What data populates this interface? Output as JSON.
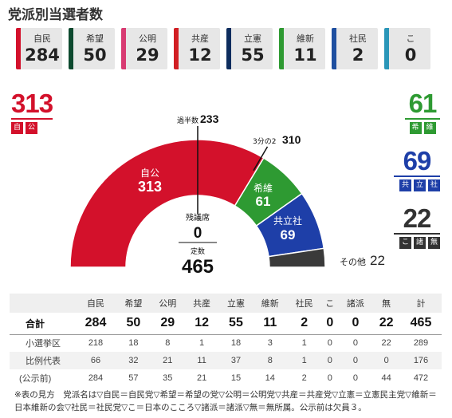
{
  "title": "党派別当選者数",
  "cards": [
    {
      "name": "自民",
      "count": "284",
      "color": "#d3112b"
    },
    {
      "name": "希望",
      "count": "50",
      "color": "#0d4a2f"
    },
    {
      "name": "公明",
      "count": "29",
      "color": "#d83b72"
    },
    {
      "name": "共産",
      "count": "12",
      "color": "#d11e23"
    },
    {
      "name": "立憲",
      "count": "55",
      "color": "#0d2d5e"
    },
    {
      "name": "維新",
      "count": "11",
      "color": "#2e9a32"
    },
    {
      "name": "社民",
      "count": "2",
      "color": "#1e4fa0"
    },
    {
      "name": "こ",
      "count": "0",
      "color": "#2a96b8"
    }
  ],
  "blocs": {
    "ruling": {
      "total": "313",
      "tags": [
        "自",
        "公"
      ],
      "color": "#d3112b"
    },
    "kibo_ishin": {
      "total": "61",
      "tags": [
        "希",
        "維"
      ],
      "color": "#2e9a32"
    },
    "left": {
      "total": "69",
      "tags": [
        "共",
        "立",
        "社"
      ],
      "color": "#1e3fa8"
    },
    "other": {
      "total": "22",
      "tags": [
        "こ",
        "諸",
        "無"
      ],
      "color": "#333333"
    }
  },
  "hemi": {
    "majority_label": "過半数",
    "majority_value": "233",
    "twothirds_label": "3分の2",
    "twothirds_value": "310",
    "ruling_label": "自公",
    "ruling_value": "313",
    "kibo_label": "希維",
    "kibo_value": "61",
    "left_label": "共立社",
    "left_value": "69",
    "remaining_label": "残議席",
    "remaining_value": "0",
    "fixed_label": "定数",
    "fixed_value": "465",
    "other_label": "その他",
    "other_value": "22"
  },
  "chart_data": {
    "type": "pie",
    "title": "",
    "categories": [
      "自公",
      "希維",
      "共立社",
      "その他"
    ],
    "values": [
      313,
      61,
      69,
      22
    ],
    "colors": [
      "#d3112b",
      "#2e9a32",
      "#1e3fa8",
      "#3a3a3a"
    ],
    "total": 465,
    "markers": [
      {
        "label": "過半数",
        "value": 233
      },
      {
        "label": "3分の2",
        "value": 310
      }
    ]
  },
  "table": {
    "headers": [
      "",
      "自民",
      "希望",
      "公明",
      "共産",
      "立憲",
      "維新",
      "社民",
      "こ",
      "諸派",
      "無",
      "計"
    ],
    "rows": [
      {
        "label": "合計",
        "cells": [
          "284",
          "50",
          "29",
          "12",
          "55",
          "11",
          "2",
          "0",
          "0",
          "22",
          "465"
        ]
      },
      {
        "label": "小選挙区",
        "cells": [
          "218",
          "18",
          "8",
          "1",
          "18",
          "3",
          "1",
          "0",
          "0",
          "22",
          "289"
        ]
      },
      {
        "label": "比例代表",
        "cells": [
          "66",
          "32",
          "21",
          "11",
          "37",
          "8",
          "1",
          "0",
          "0",
          "0",
          "176"
        ]
      },
      {
        "label": "(公示前)",
        "cells": [
          "284",
          "57",
          "35",
          "21",
          "15",
          "14",
          "2",
          "0",
          "0",
          "44",
          "472"
        ]
      }
    ]
  },
  "note": "※表の見方　党派名は▽自民＝自民党▽希望＝希望の党▽公明＝公明党▽共産＝共産党▽立憲＝立憲民主党▽維新＝日本維新の会▽社民＝社民党▽こ＝日本のこころ▽諸派＝諸派▽無＝無所属。公示前は欠員３。"
}
